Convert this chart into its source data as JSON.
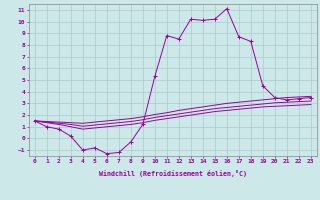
{
  "xlabel": "Windchill (Refroidissement éolien,°C)",
  "background_color": "#cce8e8",
  "grid_color": "#aacccc",
  "line_color": "#990099",
  "xlim": [
    -0.5,
    23.5
  ],
  "ylim": [
    -1.5,
    11.5
  ],
  "xticks": [
    0,
    1,
    2,
    3,
    4,
    5,
    6,
    7,
    8,
    9,
    10,
    11,
    12,
    13,
    14,
    15,
    16,
    17,
    18,
    19,
    20,
    21,
    22,
    23
  ],
  "yticks": [
    -1,
    0,
    1,
    2,
    3,
    4,
    5,
    6,
    7,
    8,
    9,
    10,
    11
  ],
  "main_x": [
    0,
    1,
    2,
    3,
    4,
    5,
    6,
    7,
    8,
    9,
    10,
    11,
    12,
    13,
    14,
    15,
    16,
    17,
    18,
    19,
    20,
    21,
    22,
    23
  ],
  "main_y": [
    1.5,
    1.0,
    0.8,
    0.2,
    -1.0,
    -0.8,
    -1.3,
    -1.2,
    -0.3,
    1.2,
    5.3,
    8.8,
    8.5,
    10.2,
    10.1,
    10.2,
    11.1,
    8.7,
    8.3,
    4.5,
    3.5,
    3.3,
    3.4,
    3.5
  ],
  "line1_x": [
    0,
    1,
    2,
    3,
    4,
    5,
    6,
    7,
    8,
    9,
    10,
    11,
    12,
    13,
    14,
    15,
    16,
    17,
    18,
    19,
    20,
    21,
    22,
    23
  ],
  "line1_y": [
    1.5,
    1.45,
    1.4,
    1.35,
    1.3,
    1.4,
    1.5,
    1.6,
    1.7,
    1.85,
    2.05,
    2.2,
    2.4,
    2.55,
    2.7,
    2.85,
    3.0,
    3.1,
    3.2,
    3.3,
    3.4,
    3.5,
    3.55,
    3.6
  ],
  "line2_x": [
    0,
    1,
    2,
    3,
    4,
    5,
    6,
    7,
    8,
    9,
    10,
    11,
    12,
    13,
    14,
    15,
    16,
    17,
    18,
    19,
    20,
    21,
    22,
    23
  ],
  "line2_y": [
    1.5,
    1.4,
    1.3,
    1.2,
    1.05,
    1.15,
    1.25,
    1.35,
    1.45,
    1.6,
    1.8,
    1.95,
    2.1,
    2.25,
    2.4,
    2.55,
    2.65,
    2.75,
    2.85,
    2.95,
    3.05,
    3.1,
    3.15,
    3.2
  ],
  "line3_x": [
    0,
    1,
    2,
    3,
    4,
    5,
    6,
    7,
    8,
    9,
    10,
    11,
    12,
    13,
    14,
    15,
    16,
    17,
    18,
    19,
    20,
    21,
    22,
    23
  ],
  "line3_y": [
    1.5,
    1.35,
    1.2,
    1.0,
    0.8,
    0.9,
    1.0,
    1.1,
    1.2,
    1.35,
    1.55,
    1.7,
    1.85,
    2.0,
    2.15,
    2.3,
    2.4,
    2.5,
    2.6,
    2.7,
    2.75,
    2.8,
    2.85,
    2.9
  ]
}
